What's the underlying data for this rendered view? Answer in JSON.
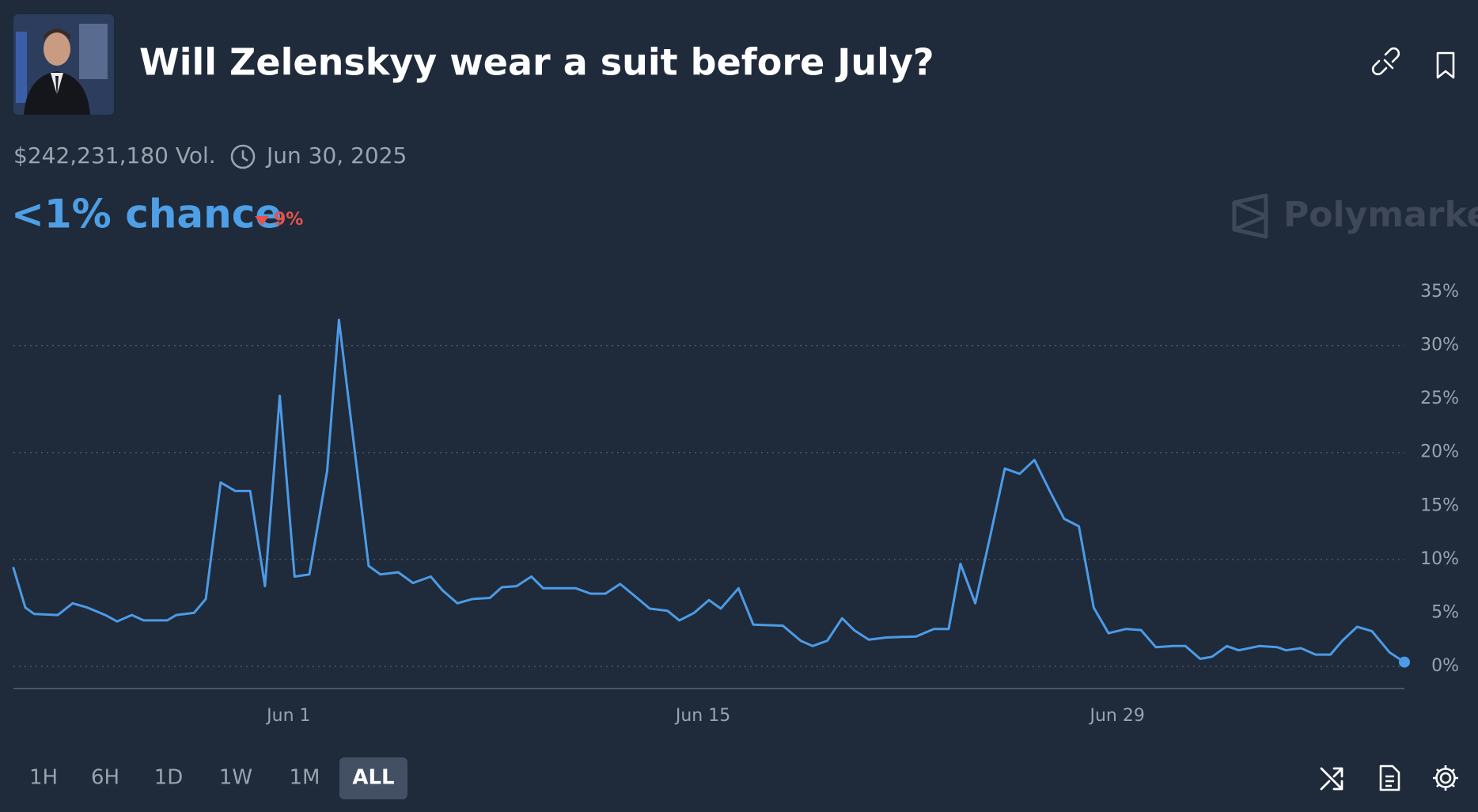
{
  "header": {
    "title": "Will Zelenskyy wear a suit before July?",
    "volume": "$242,231,180 Vol.",
    "end_date": "Jun 30, 2025",
    "headline": "<1% chance",
    "change": "9%",
    "brand": "Polymarket"
  },
  "chart_data": {
    "type": "line",
    "color": "#4c9be6",
    "x": [
      -8.3,
      -7.9,
      -7.6,
      -6.8,
      -6.3,
      -5.8,
      -5.2,
      -4.8,
      -4.3,
      -3.9,
      -3.1,
      -2.8,
      -2.2,
      -1.8,
      -1.3,
      -0.8,
      -0.3,
      0.2,
      0.7,
      1.2,
      1.7,
      2.3,
      2.7,
      3.2,
      3.7,
      4.1,
      4.7,
      5.2,
      5.8,
      6.2,
      6.7,
      7.2,
      7.8,
      8.2,
      8.7,
      9.2,
      9.6,
      10.7,
      11.2,
      11.7,
      12.2,
      12.6,
      13.2,
      13.8,
      14.2,
      14.7,
      15.2,
      15.6,
      16.2,
      16.7,
      17.7,
      18.3,
      18.7,
      19.2,
      19.7,
      20.1,
      20.6,
      21.2,
      22.2,
      22.8,
      23.3,
      23.7,
      24.2,
      24.7,
      25.2,
      25.7,
      26.2,
      26.7,
      27.2,
      27.7,
      28.2,
      28.7,
      29.3,
      29.8,
      30.3,
      30.9,
      31.3,
      31.8,
      32.2,
      32.7,
      33.1,
      33.8,
      34.4,
      34.7,
      35.2,
      35.7,
      36.2,
      36.6,
      37.1,
      37.6,
      38.2,
      38.7
    ],
    "values": [
      9.2,
      5.5,
      4.9,
      4.8,
      5.9,
      5.5,
      4.8,
      4.2,
      4.8,
      4.3,
      4.3,
      4.8,
      5.0,
      6.3,
      17.2,
      16.4,
      16.4,
      7.5,
      25.3,
      8.4,
      8.6,
      18.3,
      32.4,
      20.9,
      9.4,
      8.6,
      8.8,
      7.8,
      8.4,
      7.1,
      5.9,
      6.3,
      6.4,
      7.4,
      7.5,
      8.4,
      7.3,
      7.3,
      6.8,
      6.8,
      7.7,
      6.8,
      5.4,
      5.2,
      4.3,
      5.0,
      6.2,
      5.4,
      7.3,
      3.9,
      3.8,
      2.4,
      1.9,
      2.4,
      4.5,
      3.4,
      2.5,
      2.7,
      2.8,
      3.5,
      3.5,
      9.6,
      5.9,
      12.1,
      18.5,
      18.0,
      19.3,
      16.5,
      13.8,
      13.1,
      5.5,
      3.1,
      3.5,
      3.4,
      1.8,
      1.9,
      1.9,
      0.7,
      0.9,
      1.9,
      1.5,
      1.9,
      1.8,
      1.5,
      1.7,
      1.1,
      1.1,
      2.4,
      3.7,
      3.3,
      1.3,
      0.4
    ],
    "xlim": [
      -8.3,
      38.7
    ],
    "xticks": [
      {
        "value": 1,
        "label": "Jun 1"
      },
      {
        "value": 15,
        "label": "Jun 15"
      },
      {
        "value": 29,
        "label": "Jun 29"
      }
    ],
    "ylim": [
      0,
      35
    ],
    "yticks": [
      {
        "value": 0,
        "label": "0%"
      },
      {
        "value": 5,
        "label": "5%"
      },
      {
        "value": 10,
        "label": "10%"
      },
      {
        "value": 15,
        "label": "15%"
      },
      {
        "value": 20,
        "label": "20%"
      },
      {
        "value": 25,
        "label": "25%"
      },
      {
        "value": 30,
        "label": "30%"
      },
      {
        "value": 35,
        "label": "35%"
      }
    ],
    "grid": true
  },
  "controls": {
    "ranges": [
      "1H",
      "6H",
      "1D",
      "1W",
      "1M",
      "ALL"
    ]
  }
}
